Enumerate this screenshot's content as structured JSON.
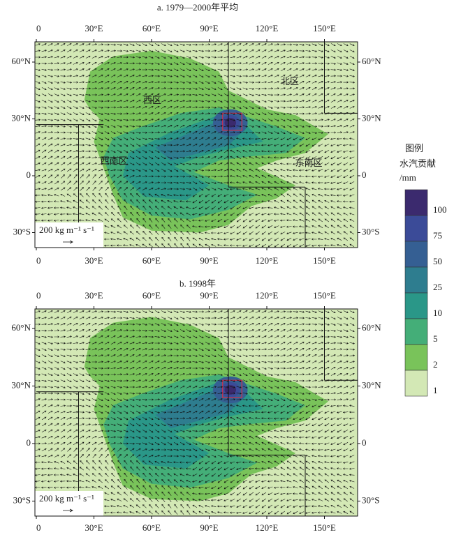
{
  "panels": [
    {
      "title": "a. 1979—2000年平均",
      "region_labels": [
        "西区",
        "北区",
        "西南区",
        "东南区"
      ],
      "vector_scale": "200 kg m⁻¹ s⁻¹"
    },
    {
      "title": "b. 1998年",
      "vector_scale": "200 kg m⁻¹ s⁻¹"
    }
  ],
  "lon_ticks": [
    "0",
    "30°E",
    "60°E",
    "90°E",
    "120°E",
    "150°E"
  ],
  "lat_ticks": [
    "60°N",
    "30°N",
    "0",
    "30°S"
  ],
  "legend": {
    "title": "图例",
    "subtitle": "水汽贡献",
    "unit": "/mm",
    "levels": [
      "100",
      "75",
      "50",
      "25",
      "10",
      "5",
      "2",
      "1"
    ],
    "colors": [
      "#3b2a6e",
      "#3b4b98",
      "#355f93",
      "#2e7d8f",
      "#2a9788",
      "#44ae78",
      "#79c35a",
      "#d3e8b5"
    ]
  }
}
